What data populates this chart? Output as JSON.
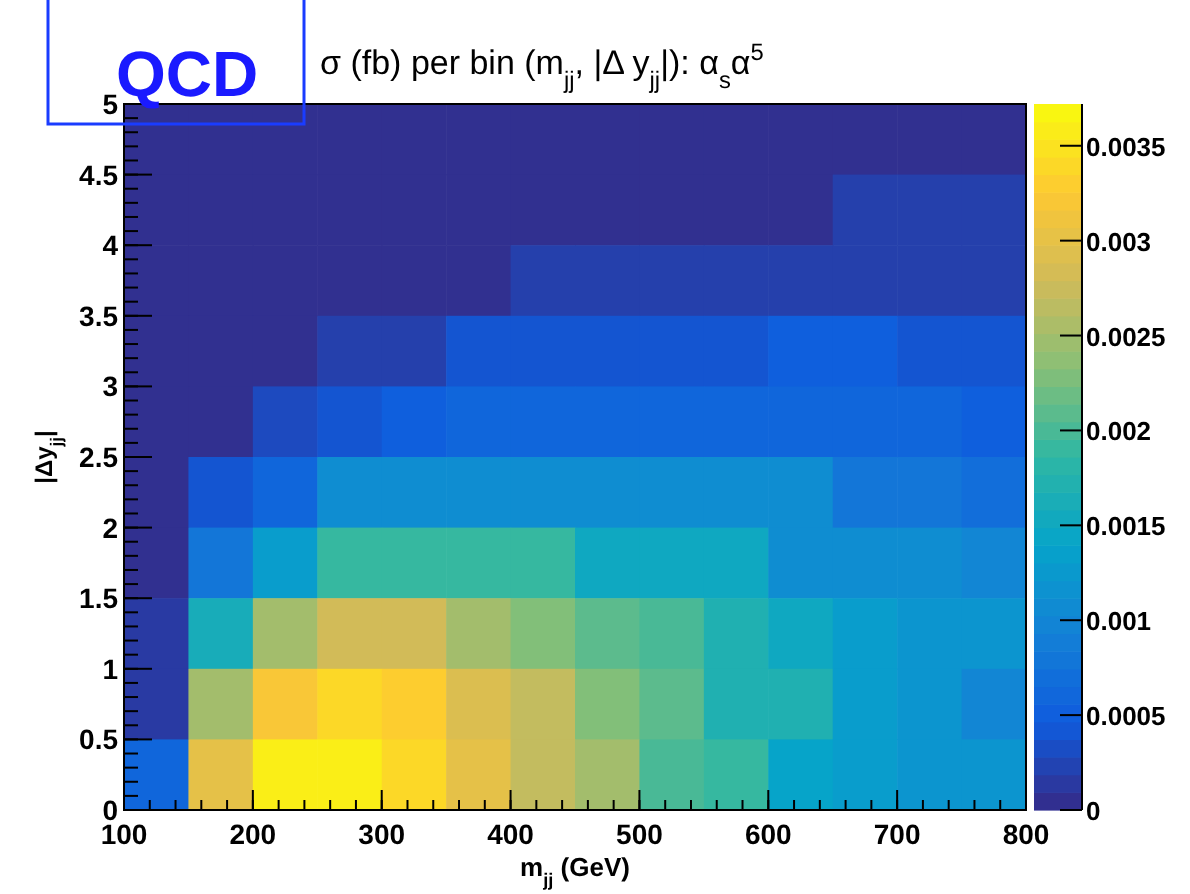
{
  "chart_data": {
    "type": "heatmap",
    "title": "σ (fb) per bin (m$_{jj}$, |Δ y$_{jj}$|):  α$_{s}$α$^{5}$",
    "xlabel": "m$_{jj}$ (GeV)",
    "ylabel": "|Δy$_{jj}$|",
    "annotations": [
      "QCD"
    ],
    "xlim": [
      100,
      800
    ],
    "xticks": [
      100,
      200,
      300,
      400,
      500,
      600,
      700,
      800
    ],
    "ylim": [
      0,
      5
    ],
    "yticks": [
      0,
      0.5,
      1,
      1.5,
      2,
      2.5,
      3,
      3.5,
      4,
      4.5,
      5
    ],
    "clim": [
      0,
      0.00372
    ],
    "cticks": [
      0,
      0.0005,
      0.001,
      0.0015,
      0.002,
      0.0025,
      0.003,
      0.0035
    ],
    "cells": [
      [
        5e-05,
        5e-05,
        5e-05,
        5e-05,
        5e-05,
        5e-05,
        5e-05,
        5e-05,
        5e-05,
        5e-05,
        5e-05,
        5e-05,
        5e-05,
        5e-05
      ],
      [
        5e-05,
        5e-05,
        5e-05,
        5e-05,
        5e-05,
        5e-05,
        5e-05,
        5e-05,
        5e-05,
        5e-05,
        5e-05,
        0.0002,
        0.0002,
        0.0002
      ],
      [
        5e-05,
        5e-05,
        5e-05,
        5e-05,
        5e-05,
        5e-05,
        0.0002,
        0.0002,
        0.0002,
        0.0002,
        0.0002,
        0.0002,
        0.0002,
        0.0002
      ],
      [
        5e-05,
        5e-05,
        5e-05,
        0.0002,
        0.0002,
        0.0004,
        0.0004,
        0.0004,
        0.0004,
        0.0004,
        0.0005,
        0.0005,
        0.0004,
        0.0004
      ],
      [
        5e-05,
        5e-05,
        0.0003,
        0.0004,
        0.0005,
        0.0006,
        0.0006,
        0.0006,
        0.0006,
        0.0006,
        0.0006,
        0.0006,
        0.0006,
        0.0005
      ],
      [
        5e-05,
        0.0004,
        0.0006,
        0.0011,
        0.0011,
        0.0011,
        0.0011,
        0.0011,
        0.0011,
        0.0011,
        0.0011,
        0.0008,
        0.0008,
        0.0007
      ],
      [
        5e-05,
        0.0008,
        0.0013,
        0.0019,
        0.0019,
        0.0019,
        0.0019,
        0.0015,
        0.0015,
        0.0015,
        0.0011,
        0.0011,
        0.0011,
        0.001
      ],
      [
        0.00015,
        0.0016,
        0.0025,
        0.0028,
        0.0028,
        0.0025,
        0.0023,
        0.0021,
        0.002,
        0.0017,
        0.0015,
        0.0013,
        0.0012,
        0.0012
      ],
      [
        0.00015,
        0.0025,
        0.0032,
        0.0034,
        0.0033,
        0.0029,
        0.0027,
        0.0023,
        0.0021,
        0.0017,
        0.0017,
        0.0013,
        0.0012,
        0.001
      ],
      [
        0.0006,
        0.003,
        0.0036,
        0.0036,
        0.0034,
        0.003,
        0.0027,
        0.0025,
        0.002,
        0.0019,
        0.0014,
        0.0013,
        0.0012,
        0.0012
      ]
    ]
  }
}
